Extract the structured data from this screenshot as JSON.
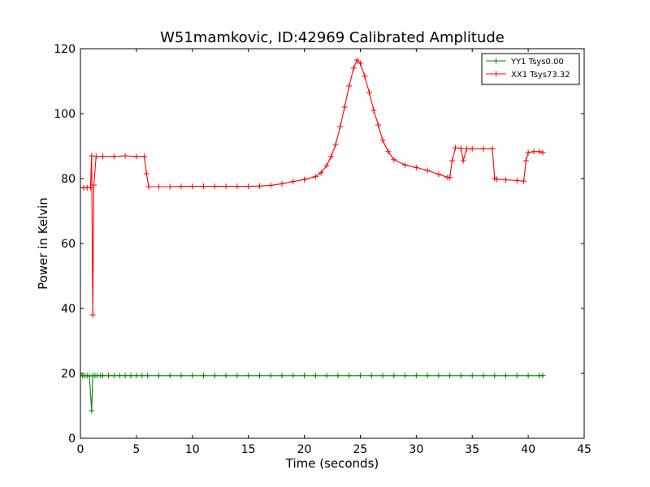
{
  "chart_data": {
    "type": "line",
    "title": "W51mamkovic, ID:42969 Calibrated Amplitude",
    "xlabel": "Time (seconds)",
    "ylabel": "Power in Kelvin",
    "xlim": [
      0,
      45
    ],
    "ylim": [
      0,
      120
    ],
    "xticks": [
      0,
      5,
      10,
      15,
      20,
      25,
      30,
      35,
      40,
      45
    ],
    "yticks": [
      0,
      20,
      40,
      60,
      80,
      100,
      120
    ],
    "grid": false,
    "legend_position": "top-right",
    "series": [
      {
        "name": "YY1 Tsys0.00",
        "color": "#008000",
        "marker": "+",
        "x": [
          0.0,
          0.2,
          0.4,
          0.6,
          0.8,
          1.0,
          1.1,
          1.3,
          1.5,
          1.8,
          2.0,
          2.5,
          3.0,
          3.5,
          4.0,
          4.5,
          5.0,
          5.5,
          6.0,
          7.0,
          8.0,
          9.0,
          10.0,
          11.0,
          12.0,
          13.0,
          14.0,
          15.0,
          16.0,
          17.0,
          18.0,
          19.0,
          20.0,
          21.0,
          22.0,
          23.0,
          24.0,
          25.0,
          26.0,
          27.0,
          28.0,
          29.0,
          30.0,
          31.0,
          32.0,
          33.0,
          34.0,
          35.0,
          36.0,
          37.0,
          38.0,
          39.0,
          40.0,
          41.0,
          41.3
        ],
        "y": [
          19.5,
          19.2,
          19.3,
          19.3,
          19.2,
          8.5,
          19.3,
          19.3,
          19.3,
          19.3,
          19.3,
          19.3,
          19.3,
          19.3,
          19.3,
          19.3,
          19.3,
          19.3,
          19.3,
          19.3,
          19.3,
          19.3,
          19.3,
          19.3,
          19.3,
          19.3,
          19.3,
          19.3,
          19.3,
          19.3,
          19.3,
          19.3,
          19.3,
          19.3,
          19.3,
          19.3,
          19.3,
          19.3,
          19.3,
          19.3,
          19.3,
          19.3,
          19.3,
          19.3,
          19.3,
          19.3,
          19.3,
          19.3,
          19.3,
          19.3,
          19.3,
          19.3,
          19.3,
          19.3,
          19.3
        ]
      },
      {
        "name": "XX1 Tsys73.32",
        "color": "#ff0000",
        "marker": "+",
        "x": [
          0.0,
          0.3,
          0.6,
          0.9,
          1.0,
          1.1,
          1.2,
          1.4,
          2.0,
          3.0,
          4.0,
          5.0,
          5.7,
          5.9,
          6.1,
          7.0,
          8.0,
          9.0,
          10.0,
          11.0,
          12.0,
          13.0,
          14.0,
          15.0,
          16.0,
          17.0,
          18.0,
          19.0,
          20.0,
          21.0,
          21.5,
          22.0,
          22.4,
          22.8,
          23.2,
          23.6,
          24.0,
          24.4,
          24.7,
          25.0,
          25.4,
          25.8,
          26.2,
          26.6,
          27.0,
          27.5,
          28.0,
          29.0,
          30.0,
          31.0,
          32.0,
          32.8,
          33.0,
          33.2,
          33.5,
          34.0,
          34.2,
          34.5,
          35.0,
          36.0,
          36.8,
          37.0,
          37.2,
          38.0,
          39.0,
          39.6,
          39.8,
          40.0,
          40.5,
          41.0,
          41.3
        ],
        "y": [
          77.2,
          77.2,
          77.2,
          77.2,
          87.0,
          38.0,
          78.0,
          86.8,
          86.8,
          86.8,
          87.0,
          86.8,
          86.8,
          81.5,
          77.5,
          77.5,
          77.5,
          77.6,
          77.6,
          77.6,
          77.6,
          77.6,
          77.6,
          77.6,
          77.7,
          77.9,
          78.4,
          79.1,
          79.7,
          80.6,
          81.8,
          84.0,
          86.8,
          90.5,
          96.0,
          102.0,
          108.5,
          114.0,
          116.5,
          115.5,
          111.5,
          106.5,
          101.0,
          96.5,
          91.8,
          88.3,
          85.8,
          84.2,
          83.4,
          82.5,
          81.3,
          80.4,
          80.3,
          85.5,
          89.5,
          89.3,
          85.5,
          89.2,
          89.2,
          89.2,
          89.2,
          80.0,
          79.8,
          79.6,
          79.4,
          79.2,
          85.5,
          88.0,
          88.3,
          88.3,
          88.0
        ]
      }
    ]
  }
}
